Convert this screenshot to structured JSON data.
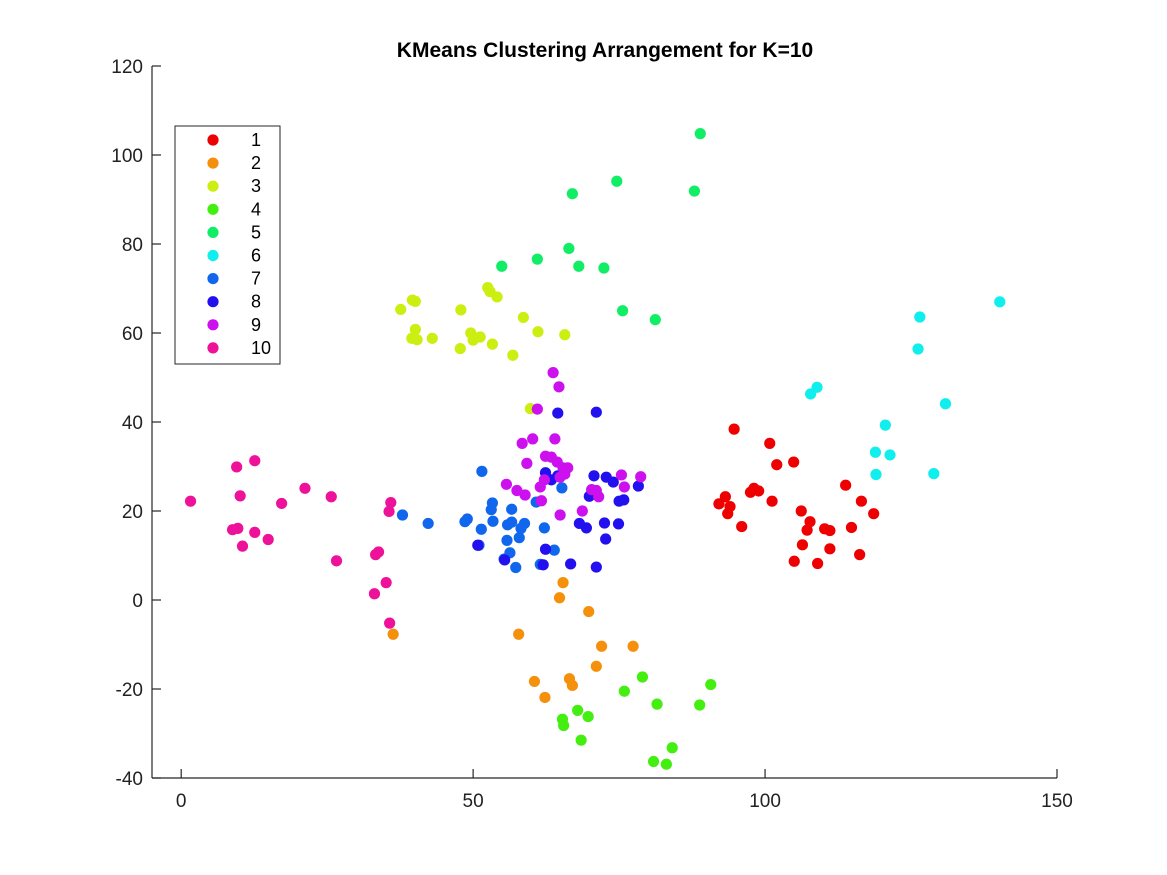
{
  "chart_data": {
    "type": "scatter",
    "title": "KMeans Clustering Arrangement for K=10",
    "xlabel": "",
    "ylabel": "",
    "xlim": [
      -5,
      150
    ],
    "ylim": [
      -40,
      120
    ],
    "xticks": [
      0,
      50,
      100,
      150
    ],
    "yticks": [
      -40,
      -20,
      0,
      20,
      40,
      60,
      80,
      100,
      120
    ],
    "xtick_labels": [
      "0",
      "50",
      "100",
      "150"
    ],
    "ytick_labels": [
      "-40",
      "-20",
      "0",
      "20",
      "40",
      "60",
      "80",
      "100",
      "120"
    ],
    "grid": false,
    "legend_position": "top-left",
    "series": [
      {
        "name": "1",
        "color": "#ee0000",
        "points": [
          [
            94.7,
            38.4
          ],
          [
            100.8,
            35.2
          ],
          [
            102,
            30.4
          ],
          [
            104.9,
            31
          ],
          [
            92.1,
            21.6
          ],
          [
            93.2,
            23.2
          ],
          [
            94,
            21
          ],
          [
            93.6,
            19.4
          ],
          [
            96,
            16.5
          ],
          [
            97.5,
            24.2
          ],
          [
            98.1,
            25.1
          ],
          [
            98.9,
            24.5
          ],
          [
            101.2,
            22.2
          ],
          [
            105,
            8.7
          ],
          [
            106.2,
            20
          ],
          [
            106.4,
            12.4
          ],
          [
            107.2,
            15.7
          ],
          [
            107.7,
            17.6
          ],
          [
            109,
            8.2
          ],
          [
            110.2,
            16
          ],
          [
            111.1,
            15.6
          ],
          [
            111.1,
            11.5
          ],
          [
            113.8,
            25.8
          ],
          [
            114.8,
            16.3
          ],
          [
            116.2,
            10.2
          ],
          [
            116.5,
            22.2
          ],
          [
            118.6,
            19.4
          ]
        ]
      },
      {
        "name": "2",
        "color": "#f5900c",
        "points": [
          [
            36.3,
            -7.7
          ],
          [
            57.8,
            -7.7
          ],
          [
            60.5,
            -18.3
          ],
          [
            62.3,
            -21.9
          ],
          [
            64.8,
            0.5
          ],
          [
            65.4,
            3.9
          ],
          [
            66.5,
            -17.7
          ],
          [
            67,
            -19.2
          ],
          [
            69.8,
            -2.6
          ],
          [
            71.1,
            -14.9
          ],
          [
            72,
            -10.4
          ],
          [
            77.4,
            -10.4
          ]
        ]
      },
      {
        "name": "3",
        "color": "#ccee11",
        "points": [
          [
            37.6,
            65.3
          ],
          [
            39.6,
            67.4
          ],
          [
            40.1,
            67.1
          ],
          [
            39.5,
            58.8
          ],
          [
            40.1,
            60.8
          ],
          [
            40.4,
            58.5
          ],
          [
            43,
            58.8
          ],
          [
            47.9,
            65.2
          ],
          [
            47.8,
            56.5
          ],
          [
            49.6,
            60
          ],
          [
            50,
            58.4
          ],
          [
            51.2,
            59.1
          ],
          [
            52.5,
            70.2
          ],
          [
            52.9,
            69.3
          ],
          [
            53.3,
            57.5
          ],
          [
            54.1,
            68.1
          ],
          [
            56.8,
            55
          ],
          [
            58.6,
            63.5
          ],
          [
            59.8,
            43
          ],
          [
            61.1,
            60.3
          ],
          [
            65.7,
            59.6
          ]
        ]
      },
      {
        "name": "4",
        "color": "#44ee11",
        "points": [
          [
            65.3,
            -26.8
          ],
          [
            65.5,
            -28.2
          ],
          [
            67.9,
            -24.8
          ],
          [
            68.5,
            -31.5
          ],
          [
            69.7,
            -26.2
          ],
          [
            75.9,
            -20.5
          ],
          [
            79,
            -17.3
          ],
          [
            80.9,
            -36.3
          ],
          [
            81.5,
            -23.4
          ],
          [
            83.1,
            -36.9
          ],
          [
            84.1,
            -33.2
          ],
          [
            88.8,
            -23.6
          ],
          [
            90.7,
            -19
          ]
        ]
      },
      {
        "name": "5",
        "color": "#11ee66",
        "points": [
          [
            54.9,
            75
          ],
          [
            61,
            76.6
          ],
          [
            66.4,
            79
          ],
          [
            67,
            91.3
          ],
          [
            68.1,
            75
          ],
          [
            72.4,
            74.6
          ],
          [
            74.6,
            94.1
          ],
          [
            75.6,
            65
          ],
          [
            81.2,
            63
          ],
          [
            87.9,
            91.9
          ],
          [
            88.9,
            104.8
          ]
        ]
      },
      {
        "name": "6",
        "color": "#11eeee",
        "points": [
          [
            107.8,
            46.3
          ],
          [
            108.9,
            47.8
          ],
          [
            118.9,
            33.2
          ],
          [
            119,
            28.2
          ],
          [
            120.6,
            39.3
          ],
          [
            121.4,
            32.6
          ],
          [
            126.2,
            56.4
          ],
          [
            126.5,
            63.6
          ],
          [
            128.9,
            28.4
          ],
          [
            130.9,
            44.1
          ],
          [
            140.2,
            67
          ]
        ]
      },
      {
        "name": "7",
        "color": "#1166ee",
        "points": [
          [
            37.9,
            19.1
          ],
          [
            42.3,
            17.2
          ],
          [
            48.6,
            17.6
          ],
          [
            49,
            18.2
          ],
          [
            51,
            12.3
          ],
          [
            51.4,
            15.9
          ],
          [
            51.5,
            28.9
          ],
          [
            53.1,
            20.3
          ],
          [
            53.3,
            21.8
          ],
          [
            53.4,
            17.7
          ],
          [
            55.3,
            9.2
          ],
          [
            55.8,
            13.4
          ],
          [
            55.9,
            16.9
          ],
          [
            56.3,
            10.6
          ],
          [
            56.6,
            20.4
          ],
          [
            56.6,
            17.5
          ],
          [
            57.3,
            7.3
          ],
          [
            57.9,
            14
          ],
          [
            58.2,
            16.1
          ],
          [
            58.8,
            17.2
          ],
          [
            60.8,
            22
          ],
          [
            61.5,
            8
          ],
          [
            62.2,
            16.2
          ],
          [
            63.9,
            11.2
          ],
          [
            65.2,
            25.2
          ]
        ]
      },
      {
        "name": "8",
        "color": "#2211ee",
        "points": [
          [
            50.8,
            12.3
          ],
          [
            55.4,
            9
          ],
          [
            62,
            7.9
          ],
          [
            62.4,
            11.4
          ],
          [
            62.4,
            28.6
          ],
          [
            63.4,
            27
          ],
          [
            64.5,
            27.9
          ],
          [
            64.5,
            42
          ],
          [
            66.7,
            8.1
          ],
          [
            68.2,
            17.2
          ],
          [
            69.4,
            16.2
          ],
          [
            69.9,
            23.3
          ],
          [
            70.7,
            27.9
          ],
          [
            71.1,
            42.2
          ],
          [
            71.1,
            7.4
          ],
          [
            72.5,
            17.3
          ],
          [
            72.7,
            13.7
          ],
          [
            72.8,
            27.6
          ],
          [
            74,
            26.5
          ],
          [
            74.9,
            17.1
          ],
          [
            75,
            22.2
          ],
          [
            75.8,
            22.5
          ],
          [
            78.3,
            25.6
          ]
        ]
      },
      {
        "name": "9",
        "color": "#cc11ee",
        "points": [
          [
            55.7,
            26
          ],
          [
            57.5,
            24.6
          ],
          [
            58.4,
            35.2
          ],
          [
            58.9,
            23.6
          ],
          [
            59.2,
            30.7
          ],
          [
            60.2,
            36.2
          ],
          [
            61,
            42.9
          ],
          [
            61.5,
            25.4
          ],
          [
            61.7,
            22.3
          ],
          [
            62.2,
            27
          ],
          [
            62.4,
            32.3
          ],
          [
            63.4,
            32.1
          ],
          [
            63.7,
            51.1
          ],
          [
            64,
            36.2
          ],
          [
            64.4,
            31
          ],
          [
            64.7,
            47.9
          ],
          [
            64.9,
            27.6
          ],
          [
            65.4,
            29.7
          ],
          [
            65.7,
            28.3
          ],
          [
            66.2,
            29.7
          ],
          [
            68.7,
            20
          ],
          [
            70.3,
            24.8
          ],
          [
            71.1,
            24.6
          ],
          [
            71.5,
            23.2
          ],
          [
            75.4,
            28.1
          ],
          [
            75.9,
            25.4
          ],
          [
            78.7,
            27.7
          ],
          [
            64.9,
            19.1
          ]
        ]
      },
      {
        "name": "10",
        "color": "#ee1199",
        "points": [
          [
            1.6,
            22.2
          ],
          [
            8.8,
            15.8
          ],
          [
            9.5,
            29.9
          ],
          [
            9.7,
            16.1
          ],
          [
            10.1,
            23.4
          ],
          [
            10.5,
            12.1
          ],
          [
            12.6,
            31.3
          ],
          [
            12.6,
            15.2
          ],
          [
            14.9,
            13.6
          ],
          [
            17.2,
            21.7
          ],
          [
            21.2,
            25.1
          ],
          [
            25.7,
            23.2
          ],
          [
            26.6,
            8.8
          ],
          [
            33.1,
            1.4
          ],
          [
            33.3,
            10.2
          ],
          [
            33.8,
            10.8
          ],
          [
            35.1,
            3.9
          ],
          [
            35.6,
            19.9
          ],
          [
            35.7,
            -5.2
          ],
          [
            35.9,
            21.9
          ]
        ]
      }
    ]
  }
}
